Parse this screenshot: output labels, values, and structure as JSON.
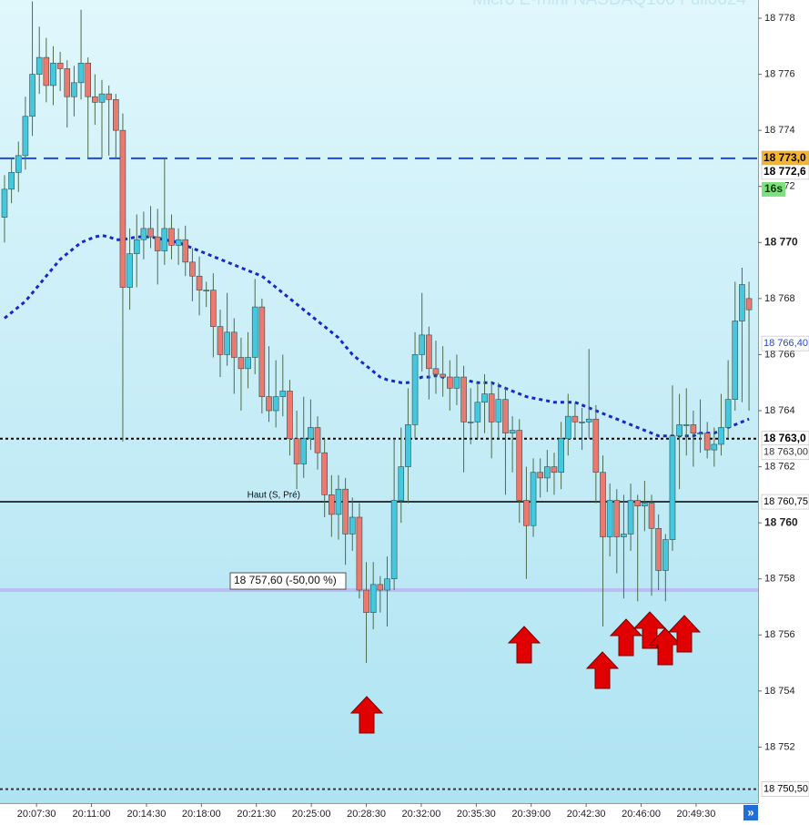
{
  "chart_data": {
    "type": "candlestick",
    "title": "Micro E-mini NASDAQ100 Full0624",
    "up_color": "#45c8de",
    "down_color": "#ea7a70",
    "xlim": [
      -0.65,
      108.3
    ],
    "xticks": [
      {
        "value": 4.6,
        "label": "20:07:30"
      },
      {
        "value": 12.5,
        "label": "20:11:00"
      },
      {
        "value": 20.4,
        "label": "20:14:30"
      },
      {
        "value": 28.3,
        "label": "20:18:00"
      },
      {
        "value": 36.2,
        "label": "20:21:30"
      },
      {
        "value": 44.1,
        "label": "20:25:00"
      },
      {
        "value": 52.0,
        "label": "20:28:30"
      },
      {
        "value": 59.9,
        "label": "20:32:00"
      },
      {
        "value": 67.8,
        "label": "20:35:30"
      },
      {
        "value": 75.7,
        "label": "20:39:00"
      },
      {
        "value": 83.6,
        "label": "20:42:30"
      },
      {
        "value": 91.5,
        "label": "20:46:00"
      },
      {
        "value": 99.4,
        "label": "20:49:30"
      }
    ],
    "ylim": [
      18750.0,
      18778.65
    ],
    "yticks": [
      {
        "value": 18752,
        "label": "18 752"
      },
      {
        "value": 18754,
        "label": "18 754"
      },
      {
        "value": 18756,
        "label": "18 756"
      },
      {
        "value": 18758,
        "label": "18 758"
      },
      {
        "value": 18760,
        "label": "18 760"
      },
      {
        "value": 18762,
        "label": "18 762"
      },
      {
        "value": 18764,
        "label": "18 764"
      },
      {
        "value": 18766,
        "label": "18 766"
      },
      {
        "value": 18768,
        "label": "18 768"
      },
      {
        "value": 18770,
        "label": "18 770"
      },
      {
        "value": 18772,
        "label": "18 772"
      },
      {
        "value": 18774,
        "label": "18 774"
      },
      {
        "value": 18776,
        "label": "18 776"
      },
      {
        "value": 18778,
        "label": "18 778"
      }
    ],
    "candles": [
      [
        18770.9,
        18772.4,
        18770.0,
        18771.9
      ],
      [
        18771.9,
        18773.0,
        18771.4,
        18772.5
      ],
      [
        18772.5,
        18773.6,
        18771.8,
        18773.1
      ],
      [
        18773.1,
        18775.2,
        18772.6,
        18774.5
      ],
      [
        18774.5,
        18778.6,
        18773.8,
        18776.0
      ],
      [
        18776.0,
        18777.7,
        18775.3,
        18776.6
      ],
      [
        18776.6,
        18777.3,
        18775.0,
        18775.6
      ],
      [
        18775.6,
        18777.0,
        18774.9,
        18776.4
      ],
      [
        18776.4,
        18776.8,
        18775.4,
        18776.2
      ],
      [
        18776.2,
        18776.5,
        18774.1,
        18775.2
      ],
      [
        18775.2,
        18776.3,
        18774.5,
        18775.7
      ],
      [
        18775.7,
        18778.3,
        18775.1,
        18776.4
      ],
      [
        18776.4,
        18776.6,
        18773.0,
        18775.2
      ],
      [
        18775.2,
        18776.0,
        18774.2,
        18775.0
      ],
      [
        18775.0,
        18775.8,
        18773.0,
        18775.3
      ],
      [
        18775.3,
        18775.6,
        18773.1,
        18775.1
      ],
      [
        18775.1,
        18775.3,
        18773.0,
        18774.0
      ],
      [
        18774.0,
        18774.6,
        18762.9,
        18768.4
      ],
      [
        18768.4,
        18770.5,
        18767.6,
        18769.6
      ],
      [
        18769.6,
        18771.0,
        18768.4,
        18770.1
      ],
      [
        18770.1,
        18771.1,
        18769.4,
        18770.5
      ],
      [
        18770.5,
        18771.3,
        18769.8,
        18770.2
      ],
      [
        18770.2,
        18771.2,
        18768.5,
        18769.7
      ],
      [
        18769.7,
        18773.0,
        18769.2,
        18770.5
      ],
      [
        18770.5,
        18771.0,
        18769.4,
        18769.9
      ],
      [
        18769.9,
        18770.5,
        18769.2,
        18770.1
      ],
      [
        18770.1,
        18770.6,
        18768.8,
        18769.3
      ],
      [
        18769.3,
        18769.8,
        18767.9,
        18768.8
      ],
      [
        18768.8,
        18769.5,
        18767.4,
        18768.3
      ],
      [
        18768.3,
        18768.6,
        18767.7,
        18768.3
      ],
      [
        18768.3,
        18768.9,
        18765.9,
        18767.0
      ],
      [
        18767.0,
        18767.6,
        18765.2,
        18766.0
      ],
      [
        18766.0,
        18768.2,
        18765.6,
        18766.8
      ],
      [
        18766.8,
        18767.3,
        18764.6,
        18765.9
      ],
      [
        18765.9,
        18766.6,
        18764.0,
        18765.5
      ],
      [
        18765.5,
        18766.8,
        18764.8,
        18765.9
      ],
      [
        18765.9,
        18768.7,
        18765.3,
        18767.7
      ],
      [
        18767.7,
        18768.0,
        18763.9,
        18764.5
      ],
      [
        18764.5,
        18766.3,
        18763.6,
        18764.0
      ],
      [
        18764.0,
        18765.8,
        18763.4,
        18764.5
      ],
      [
        18764.5,
        18766.0,
        18763.8,
        18764.7
      ],
      [
        18764.7,
        18765.1,
        18762.4,
        18763.0
      ],
      [
        18763.0,
        18764.0,
        18761.2,
        18762.1
      ],
      [
        18762.1,
        18764.5,
        18761.6,
        18763.0
      ],
      [
        18763.0,
        18764.4,
        18762.6,
        18763.4
      ],
      [
        18763.4,
        18763.8,
        18761.9,
        18762.5
      ],
      [
        18762.5,
        18763.0,
        18760.2,
        18761.0
      ],
      [
        18761.0,
        18761.7,
        18759.5,
        18760.3
      ],
      [
        18760.3,
        18761.7,
        18759.4,
        18761.2
      ],
      [
        18761.2,
        18761.6,
        18758.5,
        18759.6
      ],
      [
        18759.6,
        18760.9,
        18759.0,
        18760.2
      ],
      [
        18760.2,
        18760.7,
        18757.3,
        18757.6
      ],
      [
        18757.6,
        18758.6,
        18755.0,
        18756.8
      ],
      [
        18756.8,
        18758.6,
        18756.2,
        18757.8
      ],
      [
        18757.8,
        18758.1,
        18756.8,
        18757.6
      ],
      [
        18757.6,
        18758.8,
        18756.3,
        18758.0
      ],
      [
        18758.0,
        18763.0,
        18757.6,
        18760.8
      ],
      [
        18760.8,
        18763.4,
        18760.0,
        18762.0
      ],
      [
        18762.0,
        18764.8,
        18760.7,
        18763.5
      ],
      [
        18763.5,
        18766.8,
        18763.0,
        18766.0
      ],
      [
        18766.0,
        18768.2,
        18765.4,
        18766.7
      ],
      [
        18766.7,
        18767.0,
        18764.4,
        18765.5
      ],
      [
        18765.5,
        18766.5,
        18764.6,
        18765.3
      ],
      [
        18765.3,
        18766.3,
        18764.5,
        18765.2
      ],
      [
        18765.2,
        18765.8,
        18764.0,
        18764.8
      ],
      [
        18764.8,
        18766.0,
        18764.2,
        18765.2
      ],
      [
        18765.2,
        18765.6,
        18761.8,
        18763.6
      ],
      [
        18763.6,
        18764.8,
        18762.8,
        18763.6
      ],
      [
        18763.6,
        18765.0,
        18763.0,
        18764.3
      ],
      [
        18764.3,
        18765.3,
        18763.2,
        18764.6
      ],
      [
        18764.6,
        18765.0,
        18762.3,
        18763.6
      ],
      [
        18763.6,
        18765.0,
        18763.0,
        18764.4
      ],
      [
        18764.4,
        18764.8,
        18761.0,
        18763.2
      ],
      [
        18763.2,
        18763.8,
        18761.8,
        18763.3
      ],
      [
        18763.3,
        18763.7,
        18760.0,
        18760.8
      ],
      [
        18760.8,
        18762.0,
        18758.0,
        18759.9
      ],
      [
        18759.9,
        18762.3,
        18759.5,
        18761.8
      ],
      [
        18761.8,
        18762.3,
        18760.9,
        18761.6
      ],
      [
        18761.6,
        18762.6,
        18761.1,
        18762.0
      ],
      [
        18762.0,
        18762.5,
        18761.0,
        18761.8
      ],
      [
        18761.8,
        18763.6,
        18761.2,
        18763.0
      ],
      [
        18763.0,
        18764.6,
        18762.4,
        18763.8
      ],
      [
        18763.8,
        18764.3,
        18763.0,
        18763.6
      ],
      [
        18763.6,
        18764.1,
        18762.6,
        18763.6
      ],
      [
        18763.6,
        18766.2,
        18763.0,
        18763.7
      ],
      [
        18763.7,
        18764.2,
        18760.7,
        18761.8
      ],
      [
        18761.8,
        18762.4,
        18756.3,
        18759.5
      ],
      [
        18759.5,
        18761.4,
        18758.8,
        18760.8
      ],
      [
        18760.8,
        18761.2,
        18758.2,
        18759.5
      ],
      [
        18759.5,
        18761.0,
        18757.3,
        18759.6
      ],
      [
        18759.6,
        18761.4,
        18759.0,
        18760.8
      ],
      [
        18760.8,
        18761.0,
        18757.2,
        18760.6
      ],
      [
        18760.6,
        18761.5,
        18759.7,
        18760.7
      ],
      [
        18760.7,
        18761.0,
        18757.4,
        18759.8
      ],
      [
        18759.8,
        18760.3,
        18757.6,
        18758.3
      ],
      [
        18758.3,
        18759.6,
        18757.2,
        18759.4
      ],
      [
        18759.4,
        18764.9,
        18759.0,
        18763.1
      ],
      [
        18763.1,
        18764.6,
        18761.2,
        18763.5
      ],
      [
        18763.5,
        18764.8,
        18762.4,
        18763.5
      ],
      [
        18763.5,
        18764.0,
        18762.0,
        18763.2
      ],
      [
        18763.2,
        18764.4,
        18762.5,
        18763.2
      ],
      [
        18763.2,
        18763.6,
        18762.3,
        18762.6
      ],
      [
        18762.6,
        18763.4,
        18762.0,
        18762.8
      ],
      [
        18762.8,
        18764.6,
        18762.4,
        18763.4
      ],
      [
        18763.4,
        18765.8,
        18763.0,
        18764.4
      ],
      [
        18764.4,
        18768.6,
        18764.0,
        18767.2
      ],
      [
        18767.2,
        18769.1,
        18764.3,
        18768.5
      ],
      [
        18768.0,
        18768.6,
        18764.0,
        18767.6
      ]
    ],
    "moving_average": {
      "color": "#1428d0",
      "values": [
        18767.3,
        18767.5,
        18767.7,
        18767.9,
        18768.2,
        18768.5,
        18768.8,
        18769.1,
        18769.4,
        18769.6,
        18769.8,
        18770.0,
        18770.1,
        18770.2,
        18770.25,
        18770.2,
        18770.1,
        18770.1,
        18770.15,
        18770.2,
        18770.2,
        18770.2,
        18770.15,
        18770.1,
        18770.05,
        18770.0,
        18769.9,
        18769.8,
        18769.7,
        18769.6,
        18769.5,
        18769.4,
        18769.3,
        18769.2,
        18769.1,
        18769.0,
        18768.9,
        18768.8,
        18768.6,
        18768.4,
        18768.2,
        18768.0,
        18767.8,
        18767.6,
        18767.4,
        18767.2,
        18767.0,
        18766.8,
        18766.6,
        18766.3,
        18766.0,
        18765.8,
        18765.6,
        18765.4,
        18765.2,
        18765.1,
        18765.05,
        18765.0,
        18765.0,
        18765.1,
        18765.2,
        18765.2,
        18765.25,
        18765.2,
        18765.1,
        18765.1,
        18765.1,
        18765.05,
        18765.0,
        18765.0,
        18765.0,
        18764.9,
        18764.8,
        18764.7,
        18764.6,
        18764.5,
        18764.45,
        18764.4,
        18764.35,
        18764.3,
        18764.3,
        18764.3,
        18764.3,
        18764.2,
        18764.1,
        18764.0,
        18763.9,
        18763.8,
        18763.7,
        18763.6,
        18763.5,
        18763.4,
        18763.3,
        18763.2,
        18763.1,
        18763.1,
        18763.1,
        18763.1,
        18763.1,
        18763.1,
        18763.2,
        18763.2,
        18763.2,
        18763.3,
        18763.4,
        18763.5,
        18763.6,
        18763.7
      ]
    },
    "levels": [
      {
        "value": 18773.0,
        "label": "18 773,0",
        "color": "#1c49d8",
        "dash": "dashed",
        "tag_color": "#f7b52b"
      },
      {
        "value": 18763.0,
        "label": "18 763,0",
        "color": "#000000",
        "dash": "dotted"
      },
      {
        "value": 18760.75,
        "label": "18 760,75",
        "note": "Haut (S, Pré)",
        "color": "#000000",
        "dash": "solid"
      },
      {
        "value": 18757.6,
        "note": "18 757,60 (-50,00 %)",
        "color": "#b9bdf2",
        "dash": "solid"
      },
      {
        "value": 18750.5,
        "label": "18 750,50",
        "color": "#333333",
        "dash": "dotted"
      }
    ],
    "price_tags": [
      {
        "value": 18772.6,
        "label": "18 772,6",
        "color": "#000000"
      },
      {
        "value": 18766.4,
        "label": "18 766,40",
        "color": "#1c49d8"
      },
      {
        "value": 18763.0,
        "label": "18 763,00",
        "color": "#333333"
      }
    ],
    "timer": "16s"
  }
}
